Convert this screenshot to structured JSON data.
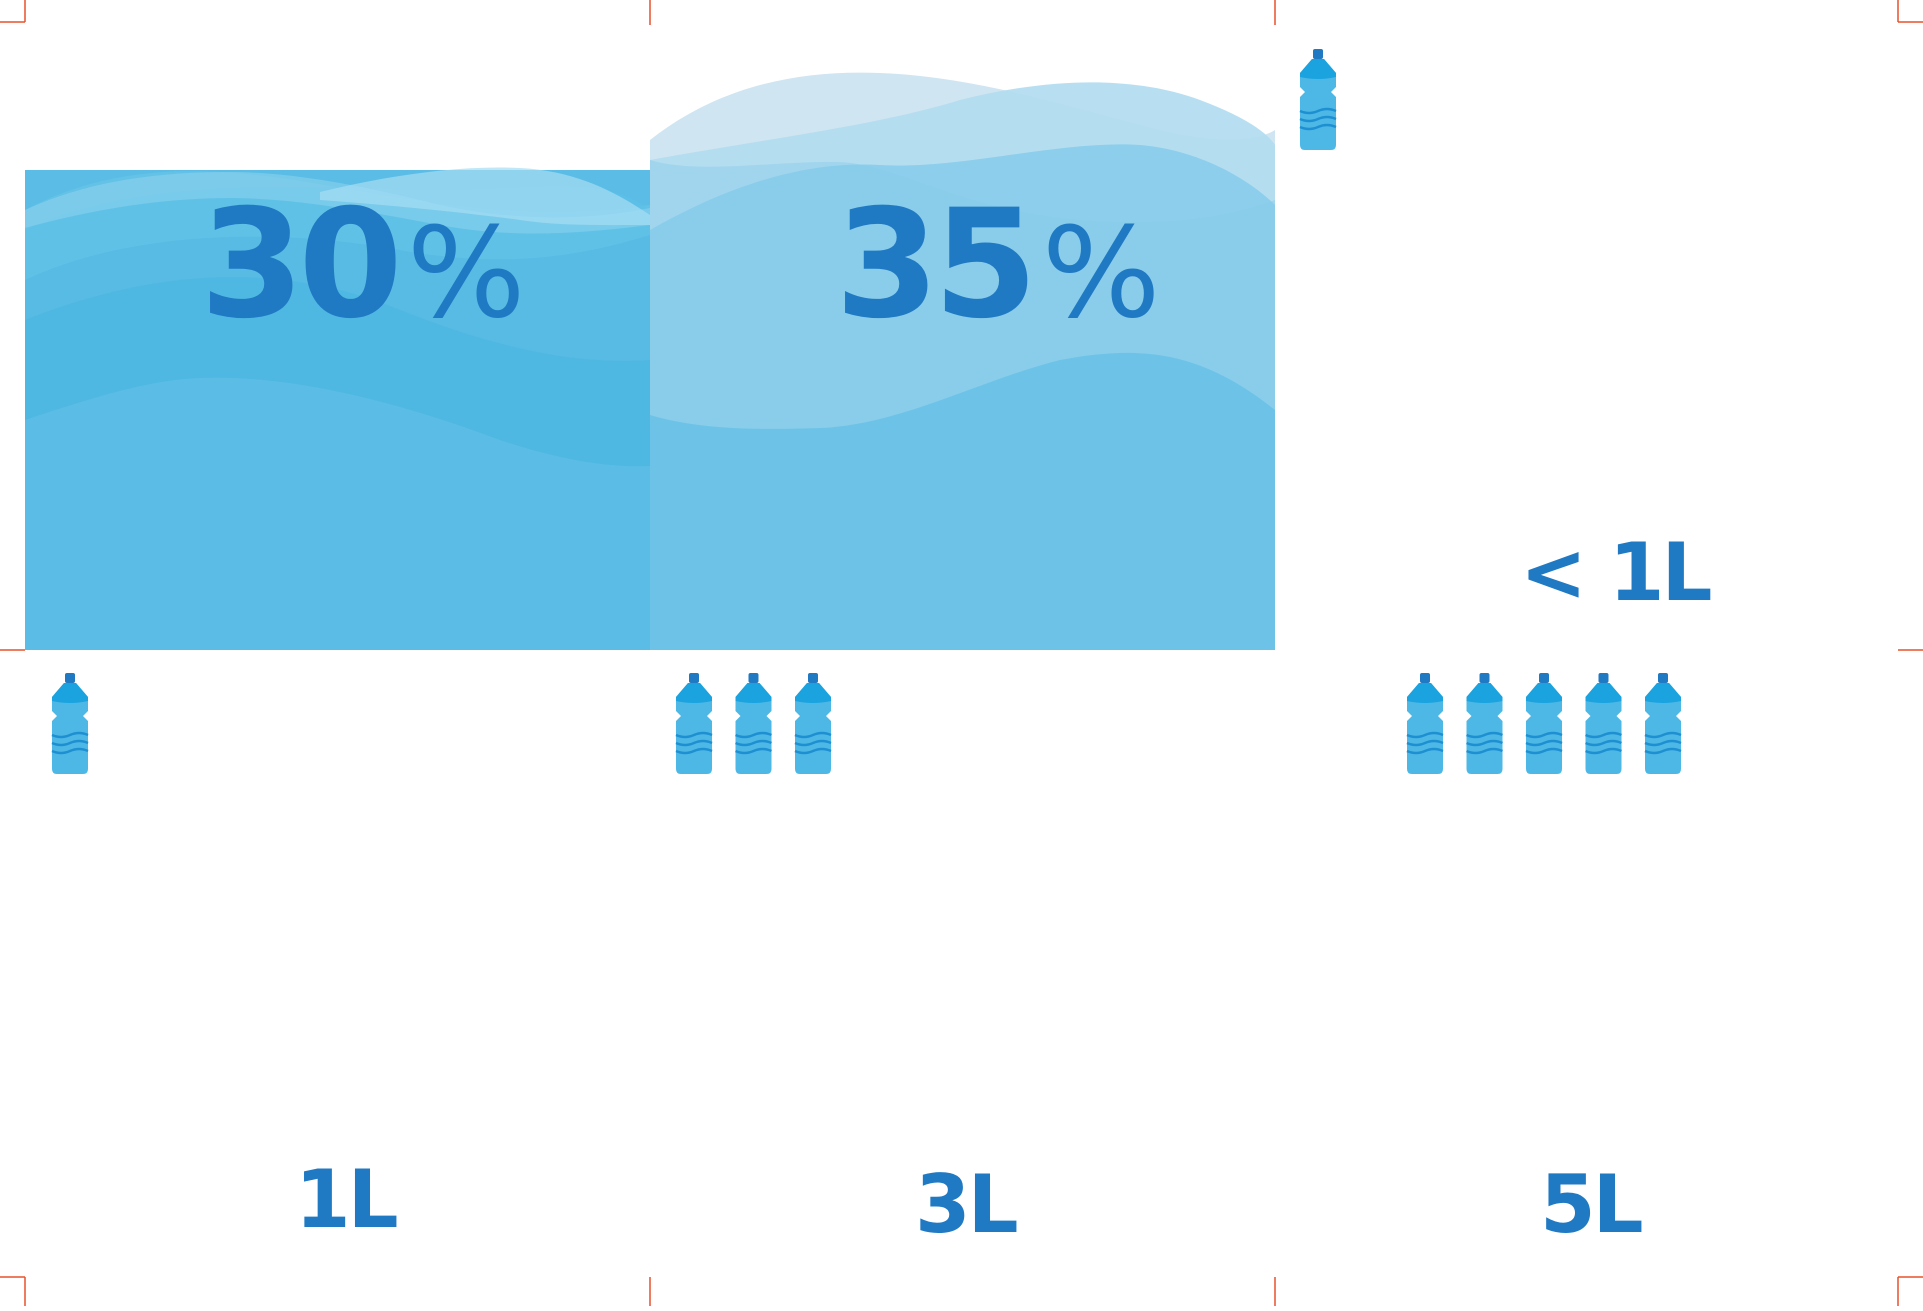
{
  "panels": [
    {
      "percent_value": "30",
      "percent_sign": "%",
      "volume": "1L",
      "bottle_count": 1
    },
    {
      "percent_value": "35",
      "percent_sign": "%",
      "volume": "3L",
      "bottle_count": 3
    },
    {
      "volume_top": "< 1L",
      "volume": "5L",
      "bottle_count": 5
    }
  ],
  "colors": {
    "accent": "#2079c3",
    "water_dark": "#5bbde5",
    "water_light": "#6dc3e7",
    "bottle_body": "#4db8e6",
    "bottle_cap": "#2079c3",
    "crop_marks": "#e8502a"
  }
}
